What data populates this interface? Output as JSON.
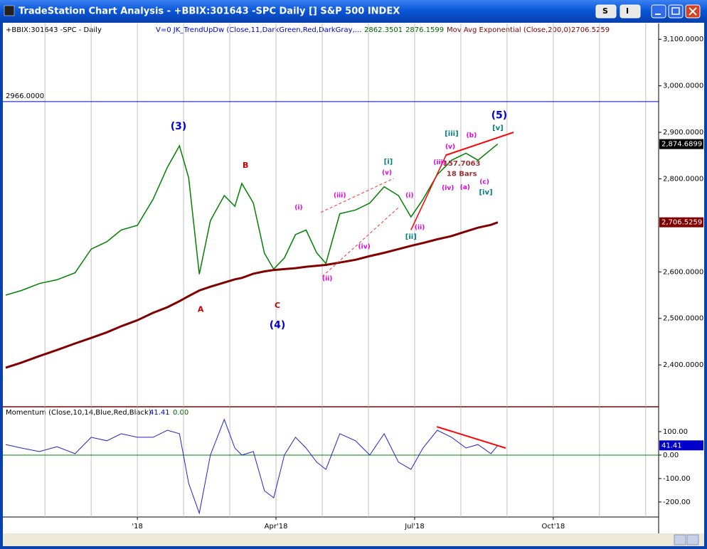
{
  "window": {
    "title": "TradeStation Chart Analysis - +BBIX:301643 -SPC Daily [] S&P 500 INDEX",
    "buttons": [
      "S",
      "I"
    ]
  },
  "chart_data": [
    {
      "type": "line",
      "legend": "+BBIX:301643 -SPC - Daily",
      "indicator": {
        "label": "V=0  JK_TrendUpDw (Close,11,DarkGreen,Red,DarkGray,...",
        "values": [
          2862.3501,
          2876.1599
        ]
      },
      "xlim": [
        -2.85,
        11.28
      ],
      "xgrid": [
        -2,
        -1,
        0,
        1,
        2,
        3,
        4,
        5,
        6,
        7,
        8,
        9,
        10,
        11
      ],
      "ylim": [
        2310,
        3134
      ],
      "yticks": [
        {
          "value": 2400,
          "label": "2,400.0000"
        },
        {
          "value": 2500,
          "label": "2,500.0000"
        },
        {
          "value": 2600,
          "label": "2,600.0000"
        },
        {
          "value": 2800,
          "label": "2,800.0000"
        },
        {
          "value": 2900,
          "label": "2,900.0000"
        },
        {
          "value": 3000,
          "label": "3,000.0000"
        },
        {
          "value": 3100,
          "label": "3,100.0000"
        }
      ],
      "hline": {
        "value": 2966,
        "label": "2966.0000",
        "color": "#0000cc"
      },
      "x": [
        -2.85,
        -2.51,
        -2.12,
        -1.74,
        -1.35,
        -1.0,
        -0.66,
        -0.35,
        0,
        0.34,
        0.65,
        0.91,
        1.11,
        1.34,
        1.58,
        1.88,
        2.11,
        2.26,
        2.51,
        2.75,
        2.95,
        3.18,
        3.42,
        3.65,
        3.88,
        4.08,
        4.38,
        4.72,
        5.03,
        5.34,
        5.65,
        5.92,
        6.18,
        6.49,
        6.8,
        7.11,
        7.37,
        7.65,
        7.8
      ],
      "series": [
        {
          "name": null,
          "color": "#008000",
          "width": 1.5,
          "last": {
            "value": 2874.6899,
            "label": "2,874.6899"
          },
          "last_color": "#000000",
          "values": [
            2550,
            2560,
            2575,
            2583,
            2598,
            2649,
            2665,
            2690,
            2700,
            2756,
            2825,
            2871,
            2802,
            2595,
            2710,
            2764,
            2741,
            2790,
            2748,
            2640,
            2606,
            2630,
            2680,
            2690,
            2641,
            2618,
            2725,
            2733,
            2748,
            2783,
            2764,
            2718,
            2756,
            2809,
            2840,
            2855,
            2840,
            2863,
            2875
          ]
        },
        {
          "name": "Mov Avg Exponential (Close,200,0)",
          "color": "#800000",
          "width": 3,
          "last": {
            "value": 2706.5259,
            "label": "2,706.5259"
          },
          "last_color": "#800000",
          "header_value": 2706.5259,
          "values": [
            2394,
            2405,
            2419,
            2432,
            2446,
            2458,
            2470,
            2483,
            2496,
            2512,
            2524,
            2537,
            2548,
            2560,
            2568,
            2577,
            2584,
            2587,
            2596,
            2601,
            2604,
            2606,
            2608,
            2611,
            2613,
            2615,
            2620,
            2626,
            2634,
            2641,
            2649,
            2656,
            2662,
            2670,
            2677,
            2687,
            2695,
            2701,
            2706.5259
          ]
        }
      ],
      "lines": [
        {
          "color": "#ff0000",
          "dash": false,
          "width": 2,
          "x": [
            6.68,
            8.14
          ],
          "y": [
            2851,
            2900
          ]
        },
        {
          "color": "#ff0000",
          "dash": false,
          "width": 1.5,
          "x": [
            5.92,
            6.69
          ],
          "y": [
            2690,
            2853
          ]
        },
        {
          "color": "#ff3333",
          "dash": true,
          "width": 1,
          "x": [
            3.97,
            5.55
          ],
          "y": [
            2728,
            2801
          ]
        },
        {
          "color": "#ff3333",
          "dash": true,
          "width": 1,
          "x": [
            4.0,
            5.68
          ],
          "y": [
            2590,
            2741
          ]
        }
      ],
      "annotations": [
        {
          "text": "(3)",
          "color": "#0000cc",
          "size": 14,
          "x": 0.89,
          "y": 2912
        },
        {
          "text": "B",
          "color": "#cc0000",
          "size": 11,
          "x": 2.34,
          "y": 2828
        },
        {
          "text": "A",
          "color": "#cc0000",
          "size": 11,
          "x": 1.37,
          "y": 2519
        },
        {
          "text": "C",
          "color": "#cc0000",
          "size": 11,
          "x": 3.03,
          "y": 2527
        },
        {
          "text": "(4)",
          "color": "#0000cc",
          "size": 14,
          "x": 3.03,
          "y": 2485
        },
        {
          "text": "(5)",
          "color": "#0000cc",
          "size": 14,
          "x": 7.83,
          "y": 2936
        },
        {
          "text": "[i]",
          "color": "#008080",
          "size": 10,
          "x": 5.43,
          "y": 2837
        },
        {
          "text": "[ii]",
          "color": "#008080",
          "size": 10,
          "x": 5.92,
          "y": 2675
        },
        {
          "text": "[iii]",
          "color": "#008080",
          "size": 10,
          "x": 6.8,
          "y": 2897
        },
        {
          "text": "[iv]",
          "color": "#008080",
          "size": 10,
          "x": 7.54,
          "y": 2771
        },
        {
          "text": "[v]",
          "color": "#008080",
          "size": 10,
          "x": 7.8,
          "y": 2909
        },
        {
          "text": "(i)",
          "color": "#e000e0",
          "size": 9,
          "x": 3.49,
          "y": 2738
        },
        {
          "text": "(ii)",
          "color": "#e000e0",
          "size": 9,
          "x": 4.11,
          "y": 2585
        },
        {
          "text": "(iii)",
          "color": "#e000e0",
          "size": 9,
          "x": 4.38,
          "y": 2764
        },
        {
          "text": "(iv)",
          "color": "#e000e0",
          "size": 9,
          "x": 4.91,
          "y": 2654
        },
        {
          "text": "(v)",
          "color": "#e000e0",
          "size": 9,
          "x": 5.4,
          "y": 2813
        },
        {
          "text": "(i)",
          "color": "#e000e0",
          "size": 9,
          "x": 5.89,
          "y": 2764
        },
        {
          "text": "(ii)",
          "color": "#e000e0",
          "size": 9,
          "x": 6.11,
          "y": 2695
        },
        {
          "text": "(iii)",
          "color": "#e000e0",
          "size": 9,
          "x": 6.54,
          "y": 2835
        },
        {
          "text": "(iv)",
          "color": "#e000e0",
          "size": 9,
          "x": 6.72,
          "y": 2780
        },
        {
          "text": "(v)",
          "color": "#e000e0",
          "size": 9,
          "x": 6.77,
          "y": 2869
        },
        {
          "text": "(a)",
          "color": "#e000e0",
          "size": 9,
          "x": 7.09,
          "y": 2782
        },
        {
          "text": "(b)",
          "color": "#e000e0",
          "size": 9,
          "x": 7.23,
          "y": 2893
        },
        {
          "text": "(c)",
          "color": "#e000e0",
          "size": 9,
          "x": 7.51,
          "y": 2793
        },
        {
          "text": "157.7063",
          "color": "#993333",
          "size": 10,
          "x": 7.02,
          "y": 2833
        },
        {
          "text": "18 Bars",
          "color": "#993333",
          "size": 10,
          "x": 7.02,
          "y": 2811
        }
      ]
    },
    {
      "type": "line",
      "legend": "Momentum (Close,10,14,Blue,Red,Black)",
      "legend_values": [
        41.41,
        {
          "value": 0,
          "label": "0.00"
        }
      ],
      "xlim": [
        -2.85,
        11.28
      ],
      "xgrid": [
        -2,
        -1,
        0,
        1,
        2,
        3,
        4,
        5,
        6,
        7,
        8,
        9,
        10,
        11
      ],
      "xticks": [
        {
          "value": 0,
          "label": "'18"
        },
        {
          "value": 3,
          "label": "Apr'18"
        },
        {
          "value": 6,
          "label": "Jul'18"
        },
        {
          "value": 9,
          "label": "Oct'18"
        }
      ],
      "ylim": [
        -264,
        203
      ],
      "yticks": [
        {
          "value": -200,
          "label": "-200.00"
        },
        {
          "value": -100,
          "label": "-100.00"
        },
        {
          "value": 0,
          "label": "0.00"
        },
        {
          "value": 100,
          "label": "100.00"
        }
      ],
      "hline": {
        "value": 0,
        "color": "#008000"
      },
      "x": [
        -2.85,
        -2.51,
        -2.12,
        -1.74,
        -1.35,
        -1.0,
        -0.66,
        -0.35,
        0,
        0.34,
        0.65,
        0.91,
        1.11,
        1.34,
        1.58,
        1.88,
        2.11,
        2.26,
        2.51,
        2.75,
        2.95,
        3.18,
        3.42,
        3.65,
        3.88,
        4.08,
        4.38,
        4.72,
        5.03,
        5.34,
        5.65,
        5.92,
        6.18,
        6.49,
        6.8,
        7.11,
        7.37,
        7.65,
        7.8
      ],
      "series": [
        {
          "name": null,
          "color": "#2222cc",
          "width": 1,
          "last": {
            "value": 41.41
          },
          "last_color": "#0000cc",
          "values": [
            45,
            30,
            15,
            36,
            6,
            76,
            61,
            91,
            76,
            76,
            106,
            91,
            -121,
            -248,
            0,
            152,
            30,
            0,
            15,
            -152,
            -182,
            0,
            76,
            30,
            -30,
            -61,
            91,
            61,
            0,
            91,
            -30,
            -61,
            30,
            106,
            76,
            30,
            45,
            6,
            41.41
          ]
        }
      ],
      "lines": [
        {
          "color": "#ff0000",
          "dash": false,
          "width": 2,
          "x": [
            6.48,
            7.97
          ],
          "y": [
            121,
            30
          ]
        }
      ]
    }
  ]
}
